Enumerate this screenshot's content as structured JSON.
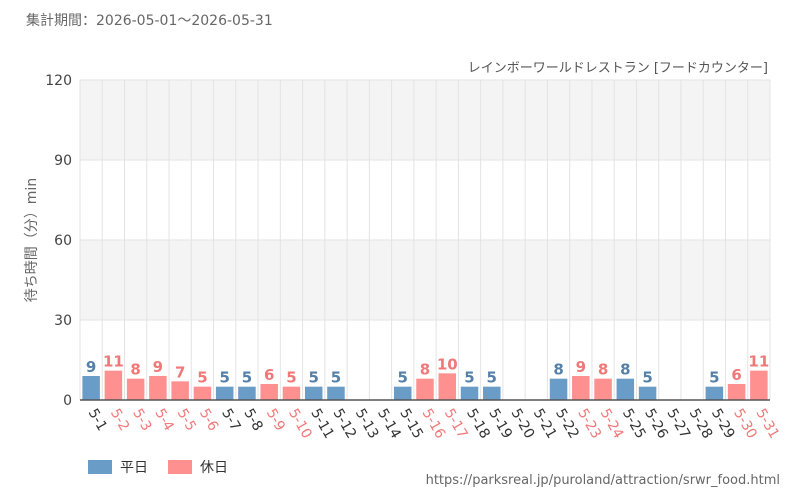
{
  "header": {
    "period_label": "集計期間：2026-05-01～2026-05-31"
  },
  "colors": {
    "weekday": "#6a9cc8",
    "holiday": "#ff9090",
    "weekday_label": "#5580a8",
    "holiday_label": "#f07878",
    "band": "#f4f4f4",
    "grid": "#e3e3e3"
  },
  "chart_data": {
    "type": "bar",
    "title": "レインボーワールドレストラン [フードカウンター]",
    "ylabel": "待ち時間（分）min",
    "xlabel": "",
    "ylim": [
      0,
      120
    ],
    "yticks": [
      0,
      30,
      60,
      90,
      120
    ],
    "grid": true,
    "legend_position": "bottom-left",
    "categories": [
      "5-1",
      "5-2",
      "5-3",
      "5-4",
      "5-5",
      "5-6",
      "5-7",
      "5-8",
      "5-9",
      "5-10",
      "5-11",
      "5-12",
      "5-13",
      "5-14",
      "5-15",
      "5-16",
      "5-17",
      "5-18",
      "5-19",
      "5-20",
      "5-21",
      "5-22",
      "5-23",
      "5-24",
      "5-25",
      "5-26",
      "5-27",
      "5-28",
      "5-29",
      "5-30",
      "5-31"
    ],
    "values": [
      9,
      11,
      8,
      9,
      7,
      5,
      5,
      5,
      6,
      5,
      5,
      5,
      null,
      null,
      5,
      8,
      10,
      5,
      5,
      null,
      null,
      8,
      9,
      8,
      8,
      5,
      null,
      null,
      5,
      6,
      11
    ],
    "day_type": [
      "weekday",
      "holiday",
      "holiday",
      "holiday",
      "holiday",
      "holiday",
      "weekday",
      "weekday",
      "holiday",
      "holiday",
      "weekday",
      "weekday",
      "weekday",
      "weekday",
      "weekday",
      "holiday",
      "holiday",
      "weekday",
      "weekday",
      "weekday",
      "weekday",
      "weekday",
      "holiday",
      "holiday",
      "weekday",
      "weekday",
      "weekday",
      "weekday",
      "weekday",
      "holiday",
      "holiday"
    ],
    "series": [
      {
        "name": "平日",
        "key": "weekday"
      },
      {
        "name": "休日",
        "key": "holiday"
      }
    ]
  },
  "source_text": "https://parksreal.jp/puroland/attraction/srwr_food.html"
}
